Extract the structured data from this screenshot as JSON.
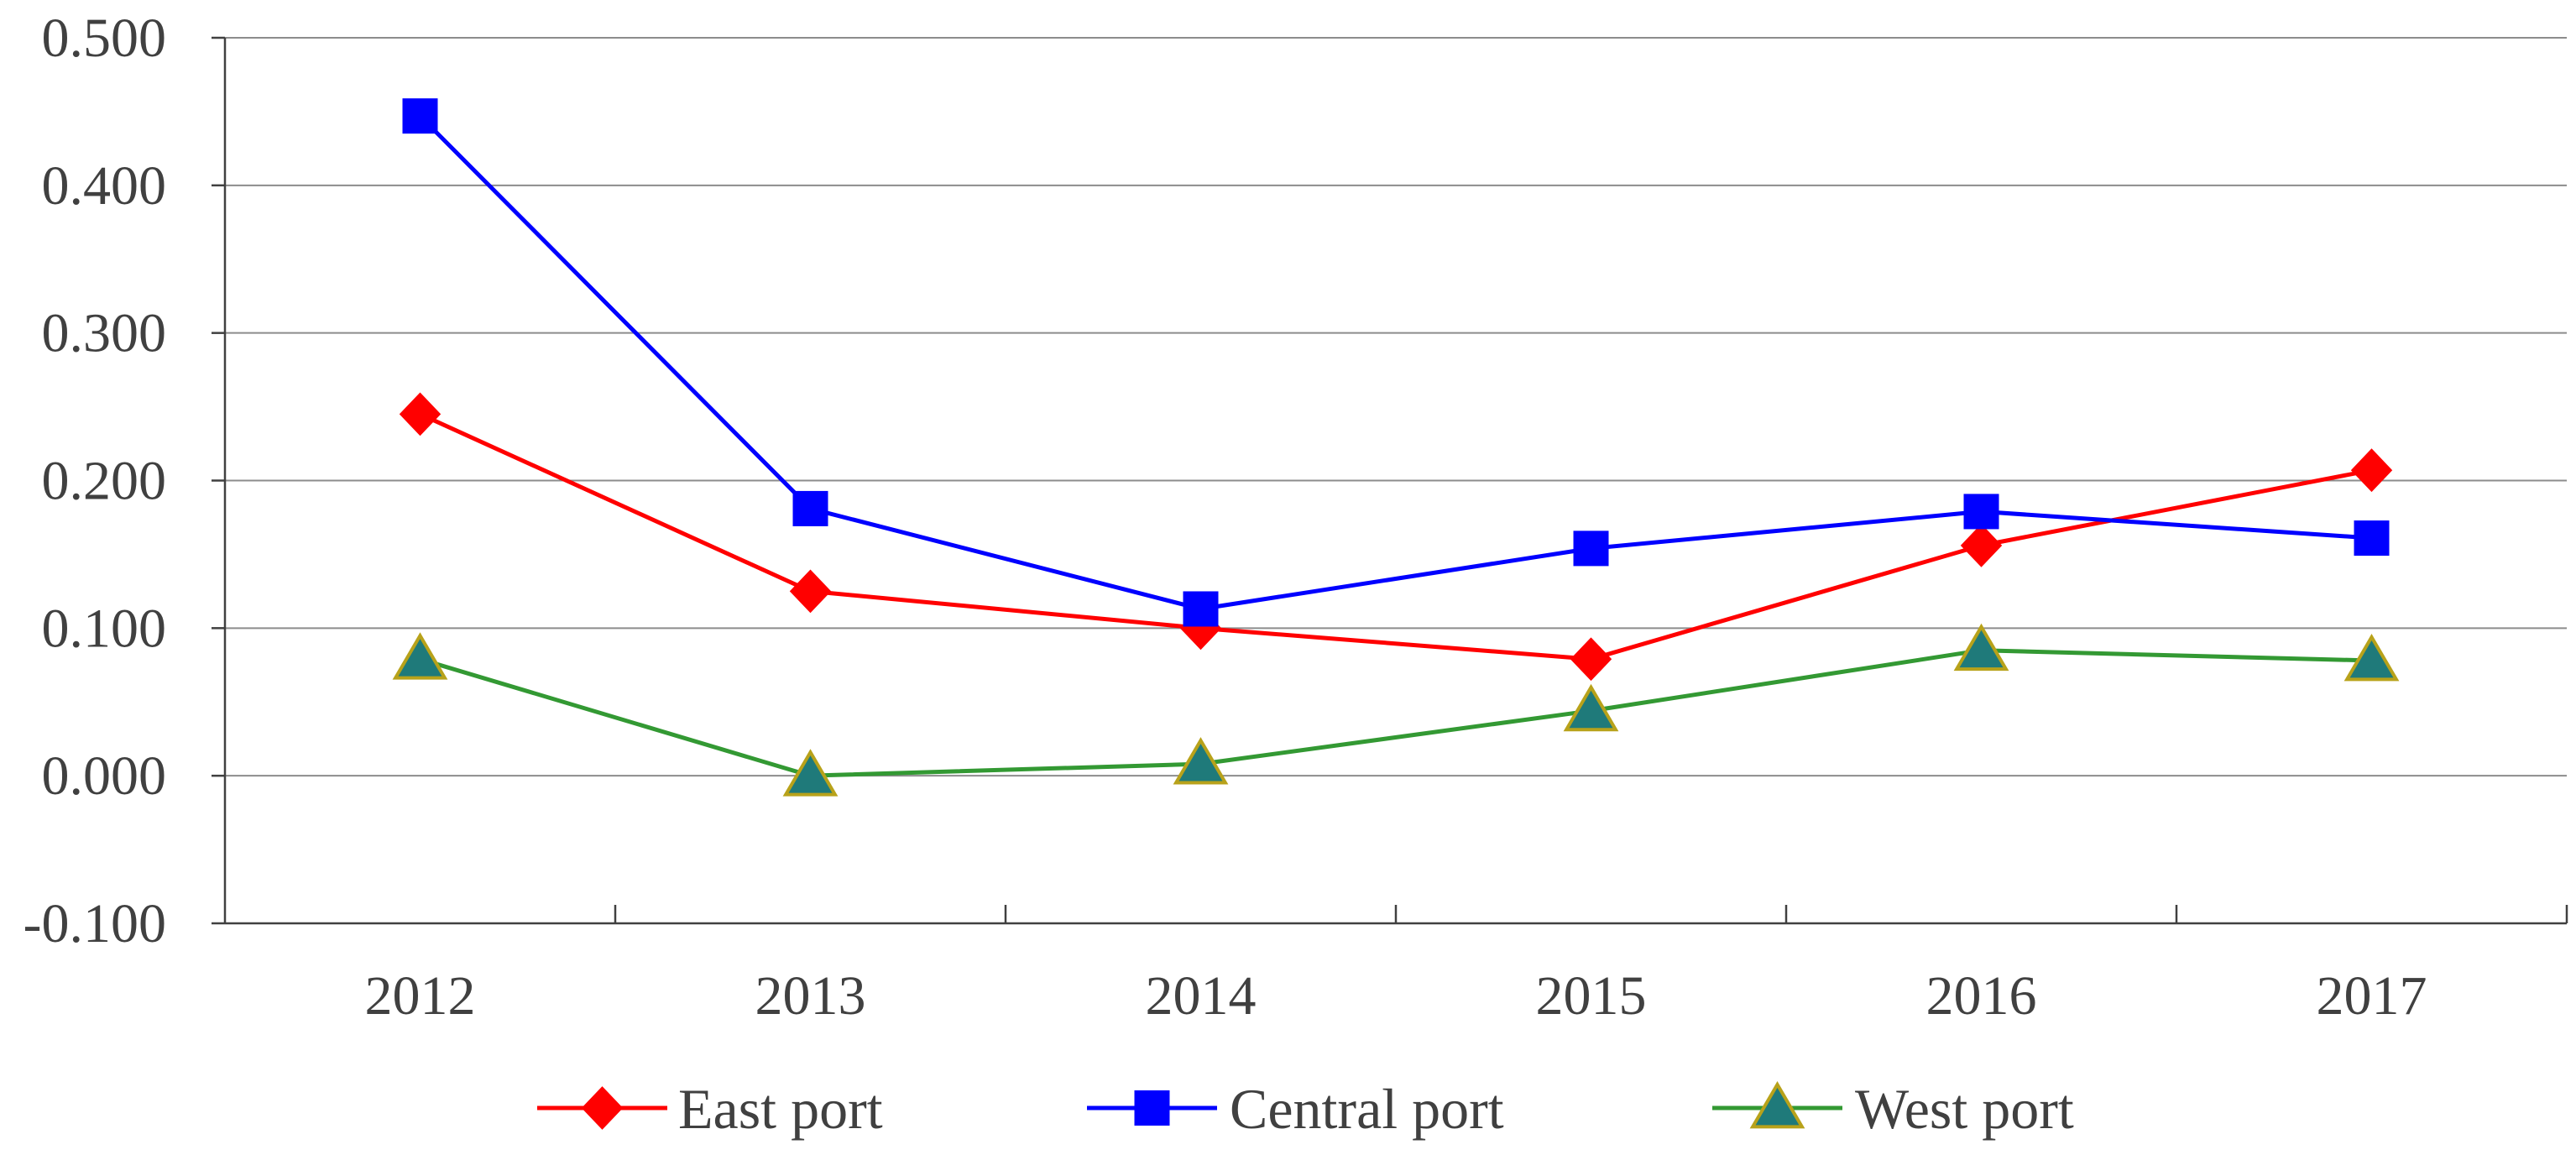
{
  "chart_data": {
    "type": "line",
    "title": "",
    "xlabel": "",
    "ylabel": "",
    "categories": [
      "2012",
      "2013",
      "2014",
      "2015",
      "2016",
      "2017"
    ],
    "ylim": [
      -0.1,
      0.5
    ],
    "yticks": [
      -0.1,
      0.0,
      0.1,
      0.2,
      0.3,
      0.4,
      0.5
    ],
    "ytick_labels": [
      "-0.100",
      "0.000",
      "0.100",
      "0.200",
      "0.300",
      "0.400",
      "0.500"
    ],
    "grid": true,
    "legend_position": "bottom",
    "series": [
      {
        "name": "East port",
        "color": "#FF0000",
        "marker": "diamond",
        "values": [
          0.245,
          0.125,
          0.1,
          0.079,
          0.156,
          0.207
        ]
      },
      {
        "name": "Central port",
        "color": "#0000FF",
        "marker": "square",
        "values": [
          0.447,
          0.181,
          0.113,
          0.154,
          0.179,
          0.161
        ]
      },
      {
        "name": "West port",
        "color": "#339933",
        "marker_fill": "#1F7A7A",
        "marker_stroke": "#B8A21A",
        "marker": "triangle",
        "values": [
          0.079,
          0.0,
          0.008,
          0.044,
          0.085,
          0.078
        ]
      }
    ]
  }
}
